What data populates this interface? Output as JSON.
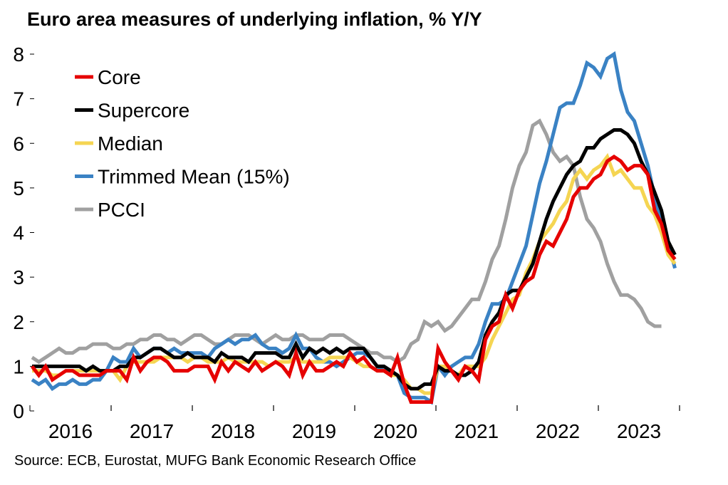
{
  "chart_data": {
    "type": "line",
    "title": "Euro area measures of underlying inflation, % Y/Y",
    "source": "Source: ECB, Eurostat, MUFG Bank Economic Research Office",
    "xlabel": "",
    "ylabel": "",
    "ylim": [
      0,
      8
    ],
    "yticks": [
      "0",
      "1",
      "2",
      "3",
      "4",
      "5",
      "6",
      "7",
      "8"
    ],
    "xtick_labels": [
      "2016",
      "2017",
      "2018",
      "2019",
      "2020",
      "2021",
      "2022",
      "2023"
    ],
    "x_start": "2016-01",
    "frequency": "monthly",
    "grid": false,
    "legend_position": "top-left",
    "series": [
      {
        "name": "Core",
        "color": "#E60000",
        "values": [
          1.0,
          0.8,
          1.0,
          0.7,
          0.8,
          0.9,
          0.9,
          0.8,
          0.8,
          0.8,
          0.8,
          0.9,
          0.9,
          0.9,
          0.7,
          1.2,
          0.9,
          1.1,
          1.2,
          1.2,
          1.1,
          0.9,
          0.9,
          0.9,
          1.0,
          1.0,
          1.0,
          0.7,
          1.1,
          0.9,
          1.1,
          1.0,
          0.9,
          1.1,
          0.9,
          1.0,
          1.1,
          1.0,
          0.8,
          1.3,
          0.8,
          1.1,
          0.9,
          0.9,
          1.0,
          1.1,
          1.0,
          1.3,
          1.1,
          1.2,
          1.0,
          0.9,
          0.9,
          0.8,
          1.2,
          0.6,
          0.2,
          0.2,
          0.2,
          0.2,
          1.4,
          1.1,
          0.9,
          0.7,
          1.0,
          0.9,
          0.7,
          1.6,
          1.9,
          2.0,
          2.6,
          2.3,
          2.7,
          2.9,
          3.0,
          3.5,
          3.8,
          3.7,
          4.0,
          4.3,
          4.8,
          5.0,
          5.0,
          5.2,
          5.3,
          5.6,
          5.7,
          5.6,
          5.4,
          5.5,
          5.5,
          5.3,
          4.5,
          4.2,
          3.6,
          3.4
        ]
      },
      {
        "name": "Supercore",
        "color": "#000000",
        "values": [
          1.0,
          1.0,
          1.0,
          1.0,
          1.0,
          1.0,
          1.0,
          1.0,
          0.9,
          1.0,
          0.9,
          0.9,
          0.9,
          1.0,
          1.0,
          1.2,
          1.2,
          1.3,
          1.4,
          1.4,
          1.3,
          1.2,
          1.2,
          1.3,
          1.2,
          1.2,
          1.2,
          1.1,
          1.3,
          1.2,
          1.2,
          1.2,
          1.1,
          1.3,
          1.3,
          1.3,
          1.3,
          1.2,
          1.2,
          1.5,
          1.2,
          1.4,
          1.3,
          1.4,
          1.3,
          1.4,
          1.3,
          1.4,
          1.4,
          1.4,
          1.2,
          1.0,
          1.0,
          0.9,
          0.8,
          0.6,
          0.5,
          0.5,
          0.6,
          0.6,
          1.0,
          0.9,
          0.9,
          0.8,
          0.8,
          0.9,
          1.1,
          1.7,
          2.0,
          2.2,
          2.6,
          2.7,
          2.7,
          3.0,
          3.3,
          3.8,
          4.3,
          4.7,
          5.0,
          5.3,
          5.5,
          5.6,
          5.9,
          5.9,
          6.1,
          6.2,
          6.3,
          6.3,
          6.2,
          6.0,
          5.6,
          5.3,
          4.9,
          4.5,
          3.8,
          3.5
        ]
      },
      {
        "name": "Median",
        "color": "#F5D552",
        "values": [
          0.9,
          0.9,
          0.9,
          0.8,
          0.8,
          0.9,
          0.9,
          0.9,
          0.9,
          0.9,
          0.9,
          0.9,
          0.9,
          0.7,
          1.0,
          1.1,
          1.1,
          1.1,
          1.1,
          1.2,
          1.2,
          1.2,
          1.2,
          1.1,
          1.2,
          1.2,
          1.1,
          1.1,
          1.1,
          1.2,
          1.1,
          1.1,
          1.1,
          1.1,
          1.1,
          1.0,
          1.1,
          1.1,
          1.1,
          1.2,
          1.1,
          1.1,
          1.1,
          1.1,
          1.2,
          1.2,
          1.2,
          1.2,
          1.1,
          1.0,
          1.0,
          0.9,
          0.9,
          0.8,
          0.8,
          0.7,
          0.5,
          0.5,
          0.4,
          0.4,
          1.0,
          1.0,
          0.9,
          0.8,
          1.0,
          1.0,
          1.0,
          1.2,
          1.6,
          1.9,
          2.2,
          2.5,
          2.6,
          3.1,
          3.4,
          3.8,
          4.0,
          4.2,
          4.5,
          4.7,
          5.2,
          5.4,
          5.2,
          5.4,
          5.5,
          5.7,
          5.3,
          5.4,
          5.2,
          5.0,
          5.0,
          4.6,
          4.4,
          4.0,
          3.5,
          3.3
        ]
      },
      {
        "name": "Trimmed Mean (15%)",
        "color": "#3A82C4",
        "values": [
          0.7,
          0.6,
          0.7,
          0.5,
          0.6,
          0.6,
          0.7,
          0.6,
          0.6,
          0.7,
          0.7,
          0.9,
          1.2,
          1.1,
          1.1,
          1.4,
          1.2,
          1.3,
          1.4,
          1.4,
          1.3,
          1.4,
          1.3,
          1.3,
          1.3,
          1.3,
          1.2,
          1.4,
          1.5,
          1.6,
          1.5,
          1.6,
          1.6,
          1.7,
          1.5,
          1.4,
          1.4,
          1.3,
          1.4,
          1.7,
          1.4,
          1.4,
          1.2,
          1.1,
          1.1,
          1.0,
          1.1,
          1.2,
          1.3,
          1.3,
          1.2,
          1.0,
          0.9,
          0.9,
          0.8,
          0.4,
          0.3,
          0.3,
          0.3,
          0.2,
          1.0,
          0.8,
          1.0,
          1.1,
          1.2,
          1.2,
          1.5,
          2.0,
          2.4,
          2.4,
          2.5,
          2.9,
          3.3,
          3.7,
          4.4,
          5.1,
          5.6,
          6.2,
          6.8,
          6.9,
          6.9,
          7.3,
          7.8,
          7.7,
          7.5,
          7.9,
          8.0,
          7.2,
          6.7,
          6.5,
          6.0,
          5.5,
          4.8,
          4.2,
          3.8,
          3.2
        ]
      },
      {
        "name": "PCCI",
        "color": "#A0A0A0",
        "values": [
          1.2,
          1.1,
          1.2,
          1.3,
          1.4,
          1.3,
          1.3,
          1.4,
          1.4,
          1.5,
          1.5,
          1.5,
          1.4,
          1.4,
          1.5,
          1.5,
          1.6,
          1.6,
          1.7,
          1.7,
          1.6,
          1.6,
          1.5,
          1.6,
          1.7,
          1.7,
          1.6,
          1.5,
          1.5,
          1.6,
          1.7,
          1.7,
          1.7,
          1.6,
          1.5,
          1.6,
          1.7,
          1.6,
          1.6,
          1.7,
          1.7,
          1.6,
          1.6,
          1.6,
          1.7,
          1.7,
          1.7,
          1.6,
          1.5,
          1.4,
          1.3,
          1.3,
          1.2,
          1.2,
          1.1,
          1.2,
          1.5,
          1.6,
          2.0,
          1.9,
          2.0,
          1.8,
          1.9,
          2.1,
          2.3,
          2.5,
          2.5,
          2.9,
          3.4,
          3.7,
          4.3,
          5.0,
          5.5,
          5.8,
          6.4,
          6.5,
          6.2,
          5.8,
          5.6,
          5.7,
          5.5,
          4.8,
          4.3,
          4.1,
          3.8,
          3.3,
          2.9,
          2.6,
          2.6,
          2.5,
          2.3,
          2.0,
          1.9,
          1.9
        ]
      }
    ]
  }
}
